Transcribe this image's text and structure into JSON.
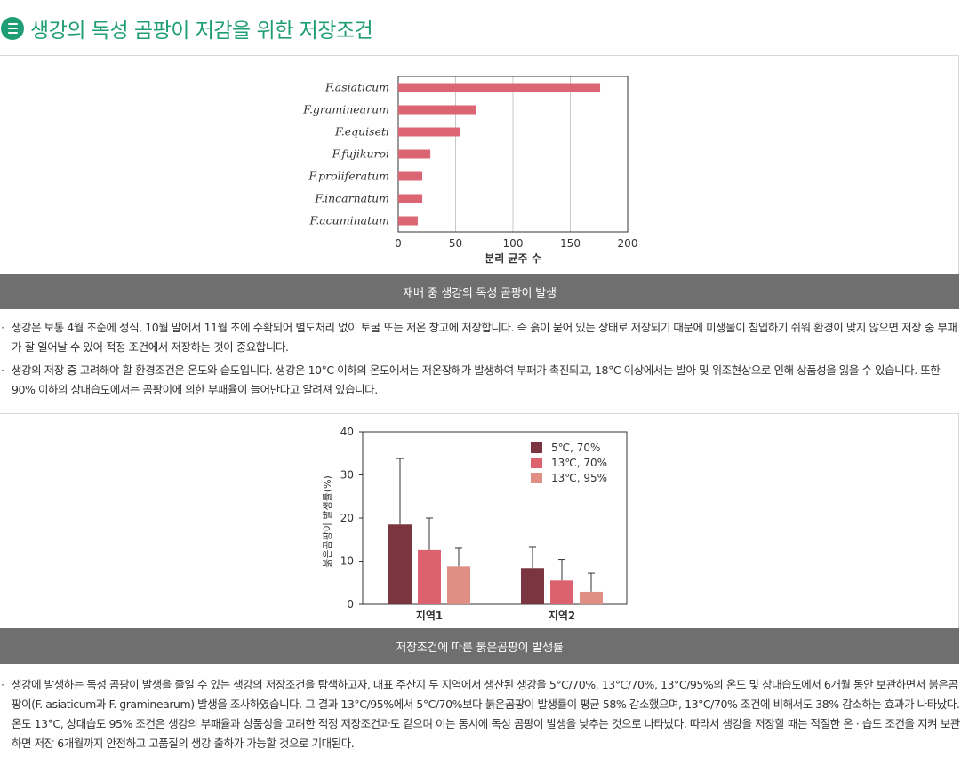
{
  "header": {
    "title": "생강의 독성 곰팡이 저감을 위한 저장조건",
    "icon": "list-icon",
    "accent": "#1f9e75"
  },
  "chart1": {
    "caption": "재배 중 생강의 독성 곰팡이 발생"
  },
  "chart2": {
    "caption": "저장조건에 따른 붉은곰팡이 발생률"
  },
  "paragraphs1": [
    "생강은 보통 4월 초순에 정식, 10월 말에서 11월 초에 수확되어 별도처리 없이 토굴 또는 저온 창고에 저장합니다. 즉 흙이 묻어 있는 상태로 저장되기 때문에 미생물이 침입하기 쉬워 환경이 맞지 않으면 저장 중 부패가 잘 일어날 수 있어 적정 조건에서 저장하는 것이 중요합니다.",
    "생강의 저장 중 고려해야 할 환경조건은 온도와 습도입니다. 생강은 10°C 이하의 온도에서는 저온장해가 발생하여 부패가 촉진되고, 18°C 이상에서는 발아 및 위조현상으로 인해 상품성을 잃을 수 있습니다. 또한 90% 이하의 상대습도에서는 곰팡이에 의한 부패율이 늘어난다고 알려져 있습니다."
  ],
  "paragraphs2": [
    "생강에 발생하는 독성 곰팡이 발생을 줄일 수 있는 생강의 저장조건을 탐색하고자, 대표 주산지 두 지역에서 생산된 생강을 5°C/70%, 13°C/70%, 13°C/95%의 온도 및 상대습도에서 6개월 동안 보관하면서 붉은곰팡이(F. asiaticum과 F. graminearum) 발생을 조사하였습니다. 그 결과 13°C/95%에서 5°C/70%보다 붉은곰팡이 발생률이 평균 58% 감소했으며, 13°C/70% 조건에 비해서도 38% 감소하는 효과가 나타났다. 온도 13°C, 상대습도 95% 조건은 생강의 부패율과 상품성을 고려한 적정 저장조건과도 같으며 이는 동시에 독성 곰팡이 발생을 낮추는 것으로 나타났다. 따라서 생강을 저장할 때는 적절한 온 · 습도 조건을 지켜 보관하면 저장 6개월까지 안전하고 고품질의 생강 출하가 가능할 것으로 기대된다."
  ],
  "chart_data": [
    {
      "type": "bar",
      "orientation": "horizontal",
      "categories": [
        "F.asiaticum",
        "F.graminearum",
        "F.equiseti",
        "F.fujikuroi",
        "F.proliferatum",
        "F.incarnatum",
        "F.acuminatum"
      ],
      "values": [
        176,
        68,
        54,
        28,
        21,
        21,
        17
      ],
      "xlabel": "분리 균주 수",
      "xlim": [
        0,
        200
      ],
      "xticks": [
        0,
        50,
        100,
        150,
        200
      ],
      "grid": true,
      "color": "#dc6573"
    },
    {
      "type": "bar",
      "categories": [
        "지역1",
        "지역2"
      ],
      "ylabel": "붉은곰팡이 발생률(%)",
      "ylim": [
        0,
        40
      ],
      "yticks": [
        0,
        10,
        20,
        30,
        40
      ],
      "legend": "top-right",
      "series": [
        {
          "name": "5℃, 70%",
          "values": [
            18.5,
            8.4
          ],
          "error_upper": [
            33.8,
            13.2
          ],
          "color": "#7a3540"
        },
        {
          "name": "13℃, 70%",
          "values": [
            12.6,
            5.5
          ],
          "error_upper": [
            20.0,
            10.4
          ],
          "color": "#dc6270"
        },
        {
          "name": "13℃, 95%",
          "values": [
            8.8,
            2.9
          ],
          "error_upper": [
            13.0,
            7.2
          ],
          "color": "#e08f85"
        }
      ]
    }
  ]
}
